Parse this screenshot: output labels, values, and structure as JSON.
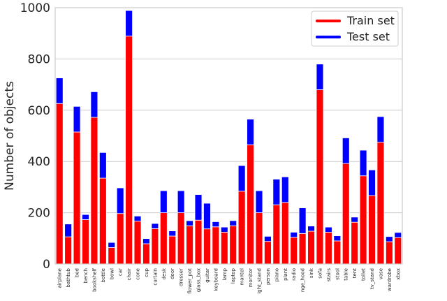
{
  "chart_data": {
    "type": "bar",
    "stacked": true,
    "xlabel": "",
    "ylabel": "Number of objects",
    "ylim": [
      0,
      1000
    ],
    "yticks": [
      "0",
      "200",
      "400",
      "600",
      "800",
      "1000"
    ],
    "grid": true,
    "legend_position": "top-right",
    "categories": [
      "airplane",
      "bathtub",
      "bed",
      "bench",
      "bookshelf",
      "bottle",
      "bowl",
      "car",
      "chair",
      "cone",
      "cup",
      "curtain",
      "desk",
      "door",
      "dresser",
      "flower_pot",
      "glass_box",
      "guitar",
      "keyboard",
      "lamp",
      "laptop",
      "mantel",
      "monitor",
      "ight_stand",
      "person",
      "piano",
      "plant",
      "radio",
      "nge_hood",
      "sink",
      "sofa",
      "stairs",
      "stool",
      "table",
      "tent",
      "toilet",
      "tv_stand",
      "vase",
      "wardrobe",
      "xbox"
    ],
    "series": [
      {
        "name": "Train set",
        "color": "#ff0000",
        "values": [
          626,
          106,
          515,
          173,
          572,
          335,
          64,
          197,
          889,
          167,
          79,
          138,
          200,
          109,
          200,
          149,
          171,
          137,
          145,
          124,
          149,
          284,
          465,
          200,
          88,
          231,
          240,
          104,
          119,
          128,
          680,
          124,
          90,
          392,
          163,
          344,
          267,
          475,
          87,
          103
        ]
      },
      {
        "name": "Test set",
        "color": "#0000ff",
        "values": [
          100,
          50,
          100,
          20,
          100,
          100,
          20,
          100,
          100,
          20,
          20,
          20,
          86,
          20,
          86,
          20,
          100,
          100,
          20,
          20,
          20,
          100,
          100,
          86,
          20,
          100,
          100,
          20,
          100,
          20,
          100,
          20,
          20,
          100,
          20,
          100,
          100,
          100,
          20,
          20
        ]
      }
    ]
  }
}
